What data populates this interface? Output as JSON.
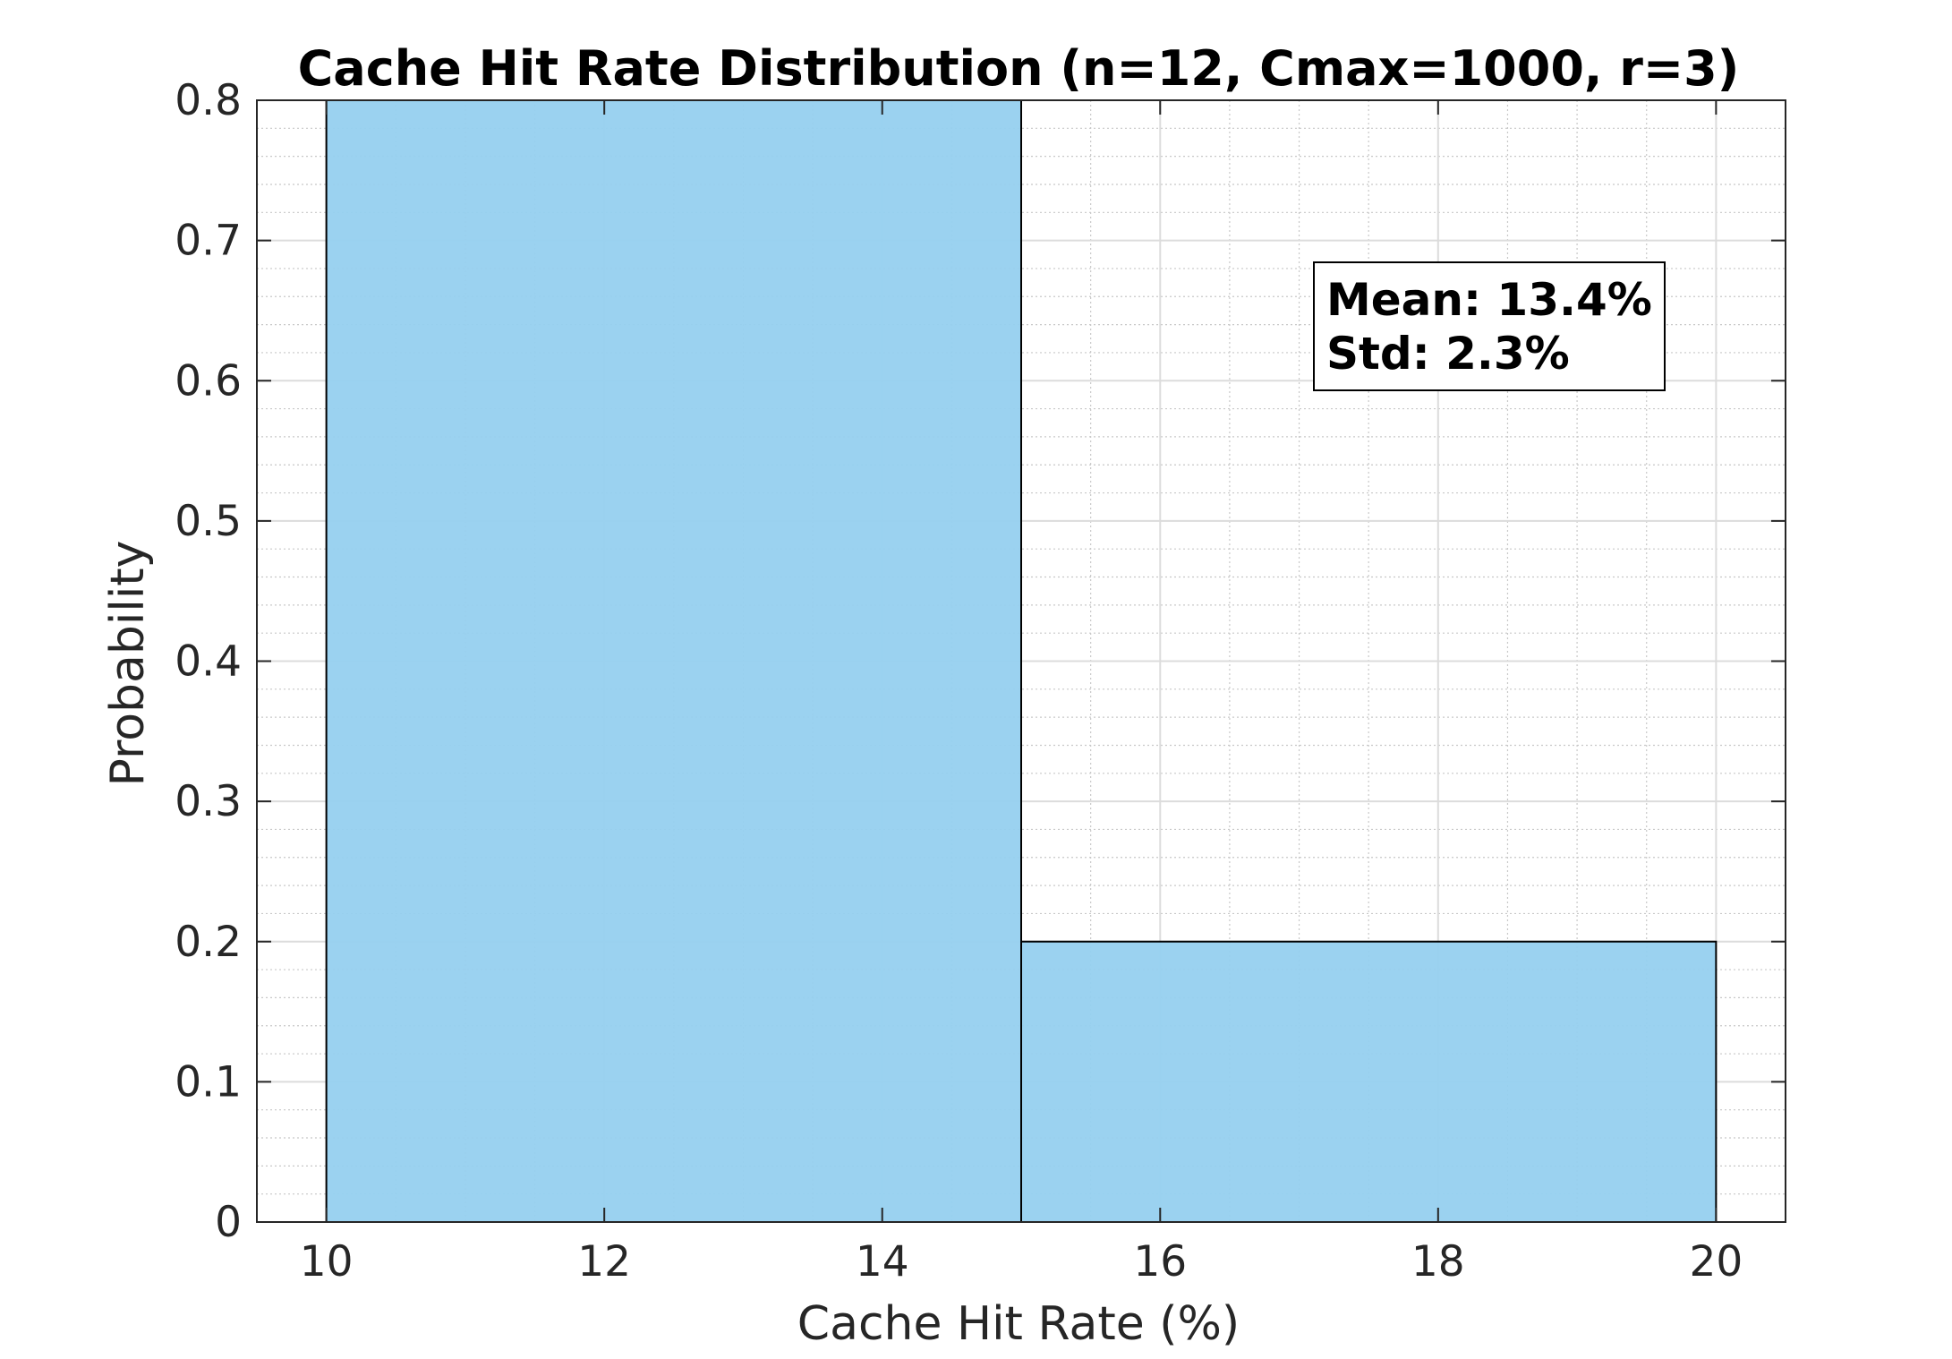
{
  "chart_data": {
    "type": "bar",
    "title": "Cache Hit Rate Distribution (n=12, Cmax=1000, r=3)",
    "xlabel": "Cache Hit Rate (%)",
    "ylabel": "Probability",
    "xlim": [
      9.5,
      20.5
    ],
    "ylim": [
      0,
      0.8
    ],
    "xticks": [
      "10",
      "12",
      "14",
      "16",
      "18",
      "20"
    ],
    "yticks": [
      "0",
      "0.1",
      "0.2",
      "0.3",
      "0.4",
      "0.5",
      "0.6",
      "0.7",
      "0.8"
    ],
    "bins": [
      {
        "start": 10,
        "end": 15,
        "value": 0.8
      },
      {
        "start": 15,
        "end": 20,
        "value": 0.2
      }
    ],
    "annotation": {
      "lines": [
        "Mean: 13.4%",
        "Std: 2.3%"
      ]
    },
    "grid": true,
    "minor_grid": true,
    "colors": {
      "bar_fill": "#96d0ef",
      "bar_edge": "#000000",
      "grid_major": "#dcdcdc",
      "grid_minor": "#c8c8c8"
    }
  }
}
